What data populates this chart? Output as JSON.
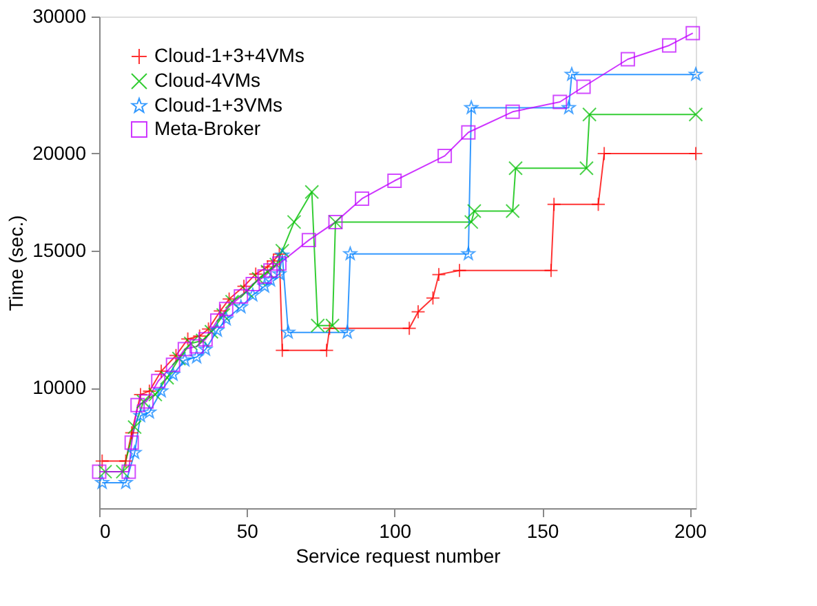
{
  "chart_data": {
    "type": "line",
    "xlabel": "Service request number",
    "ylabel": "Time (sec.)",
    "log": "y",
    "grid": false,
    "legend": "top left",
    "xlim": [
      0,
      202
    ],
    "xticks": [
      0,
      50,
      100,
      150,
      200
    ],
    "ylim": [
      7000,
      30000
    ],
    "yticks": [
      10000,
      15000,
      20000,
      30000
    ],
    "series": [
      {
        "name": "Cloud-1+3+4VMs",
        "color": "#ff0000",
        "marker": "cross",
        "x": [
          1,
          9,
          11,
          14,
          17,
          21,
          26,
          30,
          34,
          37,
          41,
          44,
          49,
          53,
          57,
          59,
          61,
          62,
          77,
          78,
          105,
          108,
          113,
          115,
          122,
          153,
          154,
          169,
          171,
          202
        ],
        "values": [
          8050,
          8050,
          8750,
          9800,
          9900,
          10500,
          11000,
          11550,
          11650,
          11900,
          12550,
          13000,
          13500,
          14000,
          14300,
          14550,
          14850,
          11170,
          11170,
          11920,
          11920,
          12520,
          13040,
          13980,
          14150,
          14150,
          17210,
          17210,
          20000,
          20000
        ]
      },
      {
        "name": "Cloud-4VMs",
        "color": "#00c000",
        "marker": "x",
        "x": [
          2,
          8,
          12,
          15,
          19,
          23,
          27,
          31,
          35,
          38,
          42,
          45,
          50,
          54,
          57,
          60,
          62,
          66,
          72,
          74,
          79,
          80,
          126,
          127,
          140,
          141,
          165,
          166,
          202
        ],
        "values": [
          7800,
          7800,
          8900,
          9600,
          9800,
          10300,
          10900,
          11400,
          11500,
          11800,
          12400,
          12900,
          13300,
          13800,
          14100,
          14400,
          15000,
          16330,
          17850,
          12020,
          12020,
          16330,
          16330,
          16870,
          16870,
          19150,
          19150,
          22450,
          22450
        ]
      },
      {
        "name": "Cloud-1+3VMs",
        "color": "#0080ff",
        "marker": "star",
        "x": [
          1,
          9,
          12,
          14,
          17,
          21,
          25,
          29,
          33,
          36,
          40,
          43,
          48,
          52,
          56,
          58,
          61,
          62,
          64,
          84,
          85,
          125,
          126,
          159,
          160,
          202
        ],
        "values": [
          7550,
          7550,
          8250,
          9200,
          9300,
          9900,
          10400,
          10850,
          10950,
          11200,
          11850,
          12250,
          12700,
          13150,
          13500,
          13750,
          14000,
          14800,
          11780,
          11780,
          14860,
          14860,
          22900,
          22900,
          25270,
          25270
        ]
      },
      {
        "name": "Meta-Broker",
        "color": "#c000ff",
        "marker": "square",
        "x": [
          0,
          10,
          11,
          13,
          16,
          20,
          25,
          29,
          33,
          36,
          40,
          43,
          48,
          52,
          56,
          58,
          61,
          71,
          80,
          89,
          100,
          117,
          125,
          140,
          156,
          164,
          179,
          193,
          201
        ],
        "values": [
          7800,
          7800,
          8500,
          9500,
          9600,
          10200,
          10700,
          11210,
          11300,
          11540,
          12200,
          12620,
          13100,
          13590,
          13900,
          14150,
          14440,
          15480,
          16330,
          17500,
          18450,
          19860,
          21290,
          22630,
          23300,
          24370,
          26440,
          27540,
          28560
        ]
      }
    ]
  }
}
